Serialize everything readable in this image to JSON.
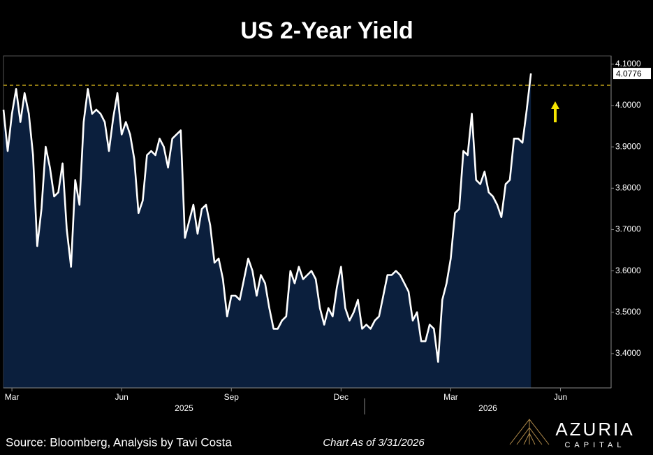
{
  "chart_data": {
    "type": "area-line",
    "title": "US 2-Year Yield",
    "categories": [
      null,
      null,
      "Mar",
      null,
      null,
      null,
      null,
      null,
      null,
      null,
      null,
      null,
      null,
      null,
      null,
      null,
      null,
      null,
      null,
      null,
      null,
      null,
      null,
      null,
      null,
      null,
      null,
      null,
      "Jun",
      null,
      null,
      null,
      null,
      null,
      null,
      null,
      null,
      null,
      null,
      null,
      null,
      null,
      null,
      null,
      null,
      null,
      null,
      null,
      null,
      null,
      null,
      null,
      null,
      null,
      "Sep",
      null,
      null,
      null,
      null,
      null,
      null,
      null,
      null,
      null,
      null,
      null,
      null,
      null,
      null,
      null,
      null,
      null,
      null,
      null,
      null,
      null,
      null,
      null,
      null,
      null,
      "Dec",
      null,
      null,
      null,
      null,
      null,
      null,
      null,
      null,
      null,
      null,
      null,
      null,
      null,
      null,
      null,
      null,
      null,
      null,
      null,
      null,
      null,
      null,
      null,
      null,
      null,
      "Mar",
      null,
      null,
      null,
      null,
      null,
      null,
      null,
      null,
      null,
      null,
      null,
      null,
      null,
      null,
      null,
      null,
      null,
      null,
      null,
      null,
      null,
      null,
      null,
      null,
      null,
      "Jun",
      null,
      null,
      null,
      null,
      null,
      null,
      null,
      null,
      null,
      null,
      null
    ],
    "year_labels": [
      "2025",
      "2026"
    ],
    "series": [
      {
        "name": "US 2-Year Yield",
        "color": "#ffffff",
        "fill": "#0b1f3d",
        "values": [
          3.99,
          3.89,
          3.98,
          4.04,
          3.96,
          4.03,
          3.98,
          3.88,
          3.66,
          3.75,
          3.9,
          3.85,
          3.78,
          3.79,
          3.86,
          3.7,
          3.61,
          3.82,
          3.76,
          3.96,
          4.04,
          3.98,
          3.99,
          3.98,
          3.96,
          3.89,
          3.97,
          4.03,
          3.93,
          3.96,
          3.93,
          3.87,
          3.74,
          3.77,
          3.88,
          3.89,
          3.88,
          3.92,
          3.9,
          3.85,
          3.92,
          3.93,
          3.94,
          3.68,
          3.72,
          3.76,
          3.69,
          3.75,
          3.76,
          3.71,
          3.62,
          3.63,
          3.58,
          3.49,
          3.54,
          3.54,
          3.53,
          3.58,
          3.63,
          3.6,
          3.54,
          3.59,
          3.57,
          3.51,
          3.46,
          3.46,
          3.48,
          3.49,
          3.6,
          3.57,
          3.61,
          3.58,
          3.59,
          3.6,
          3.58,
          3.51,
          3.47,
          3.51,
          3.49,
          3.56,
          3.61,
          3.51,
          3.48,
          3.5,
          3.53,
          3.46,
          3.47,
          3.46,
          3.48,
          3.49,
          3.54,
          3.59,
          3.59,
          3.6,
          3.59,
          3.57,
          3.55,
          3.48,
          3.5,
          3.43,
          3.43,
          3.47,
          3.46,
          3.38,
          3.53,
          3.57,
          3.63,
          3.74,
          3.75,
          3.89,
          3.88,
          3.98,
          3.82,
          3.81,
          3.84,
          3.79,
          3.78,
          3.76,
          3.73,
          3.81,
          3.82,
          3.92,
          3.92,
          3.91,
          3.99,
          4.0776,
          null,
          null,
          null,
          null,
          null,
          null,
          null,
          null,
          null,
          null,
          null,
          null,
          null,
          null,
          null,
          null,
          null,
          null
        ]
      }
    ],
    "ylim": [
      3.317,
      4.12
    ],
    "yticks": [
      {
        "value": 3.4,
        "label": "3.4000"
      },
      {
        "value": 3.5,
        "label": "3.5000"
      },
      {
        "value": 3.6,
        "label": "3.6000"
      },
      {
        "value": 3.7,
        "label": "3.7000"
      },
      {
        "value": 3.8,
        "label": "3.8000"
      },
      {
        "value": 3.9,
        "label": "3.9000"
      },
      {
        "value": 4.0,
        "label": "4.0000"
      },
      {
        "value": 4.1,
        "label": "4.1000"
      }
    ],
    "reference_line": {
      "value": 4.049,
      "color": "#e8c21c"
    },
    "source": "Source: Bloomberg, Analysis by Tavi Costa",
    "as_of": "Chart As of 3/31/2026",
    "logo": {
      "name": "AZURIA",
      "sub": "CAPITAL"
    }
  }
}
